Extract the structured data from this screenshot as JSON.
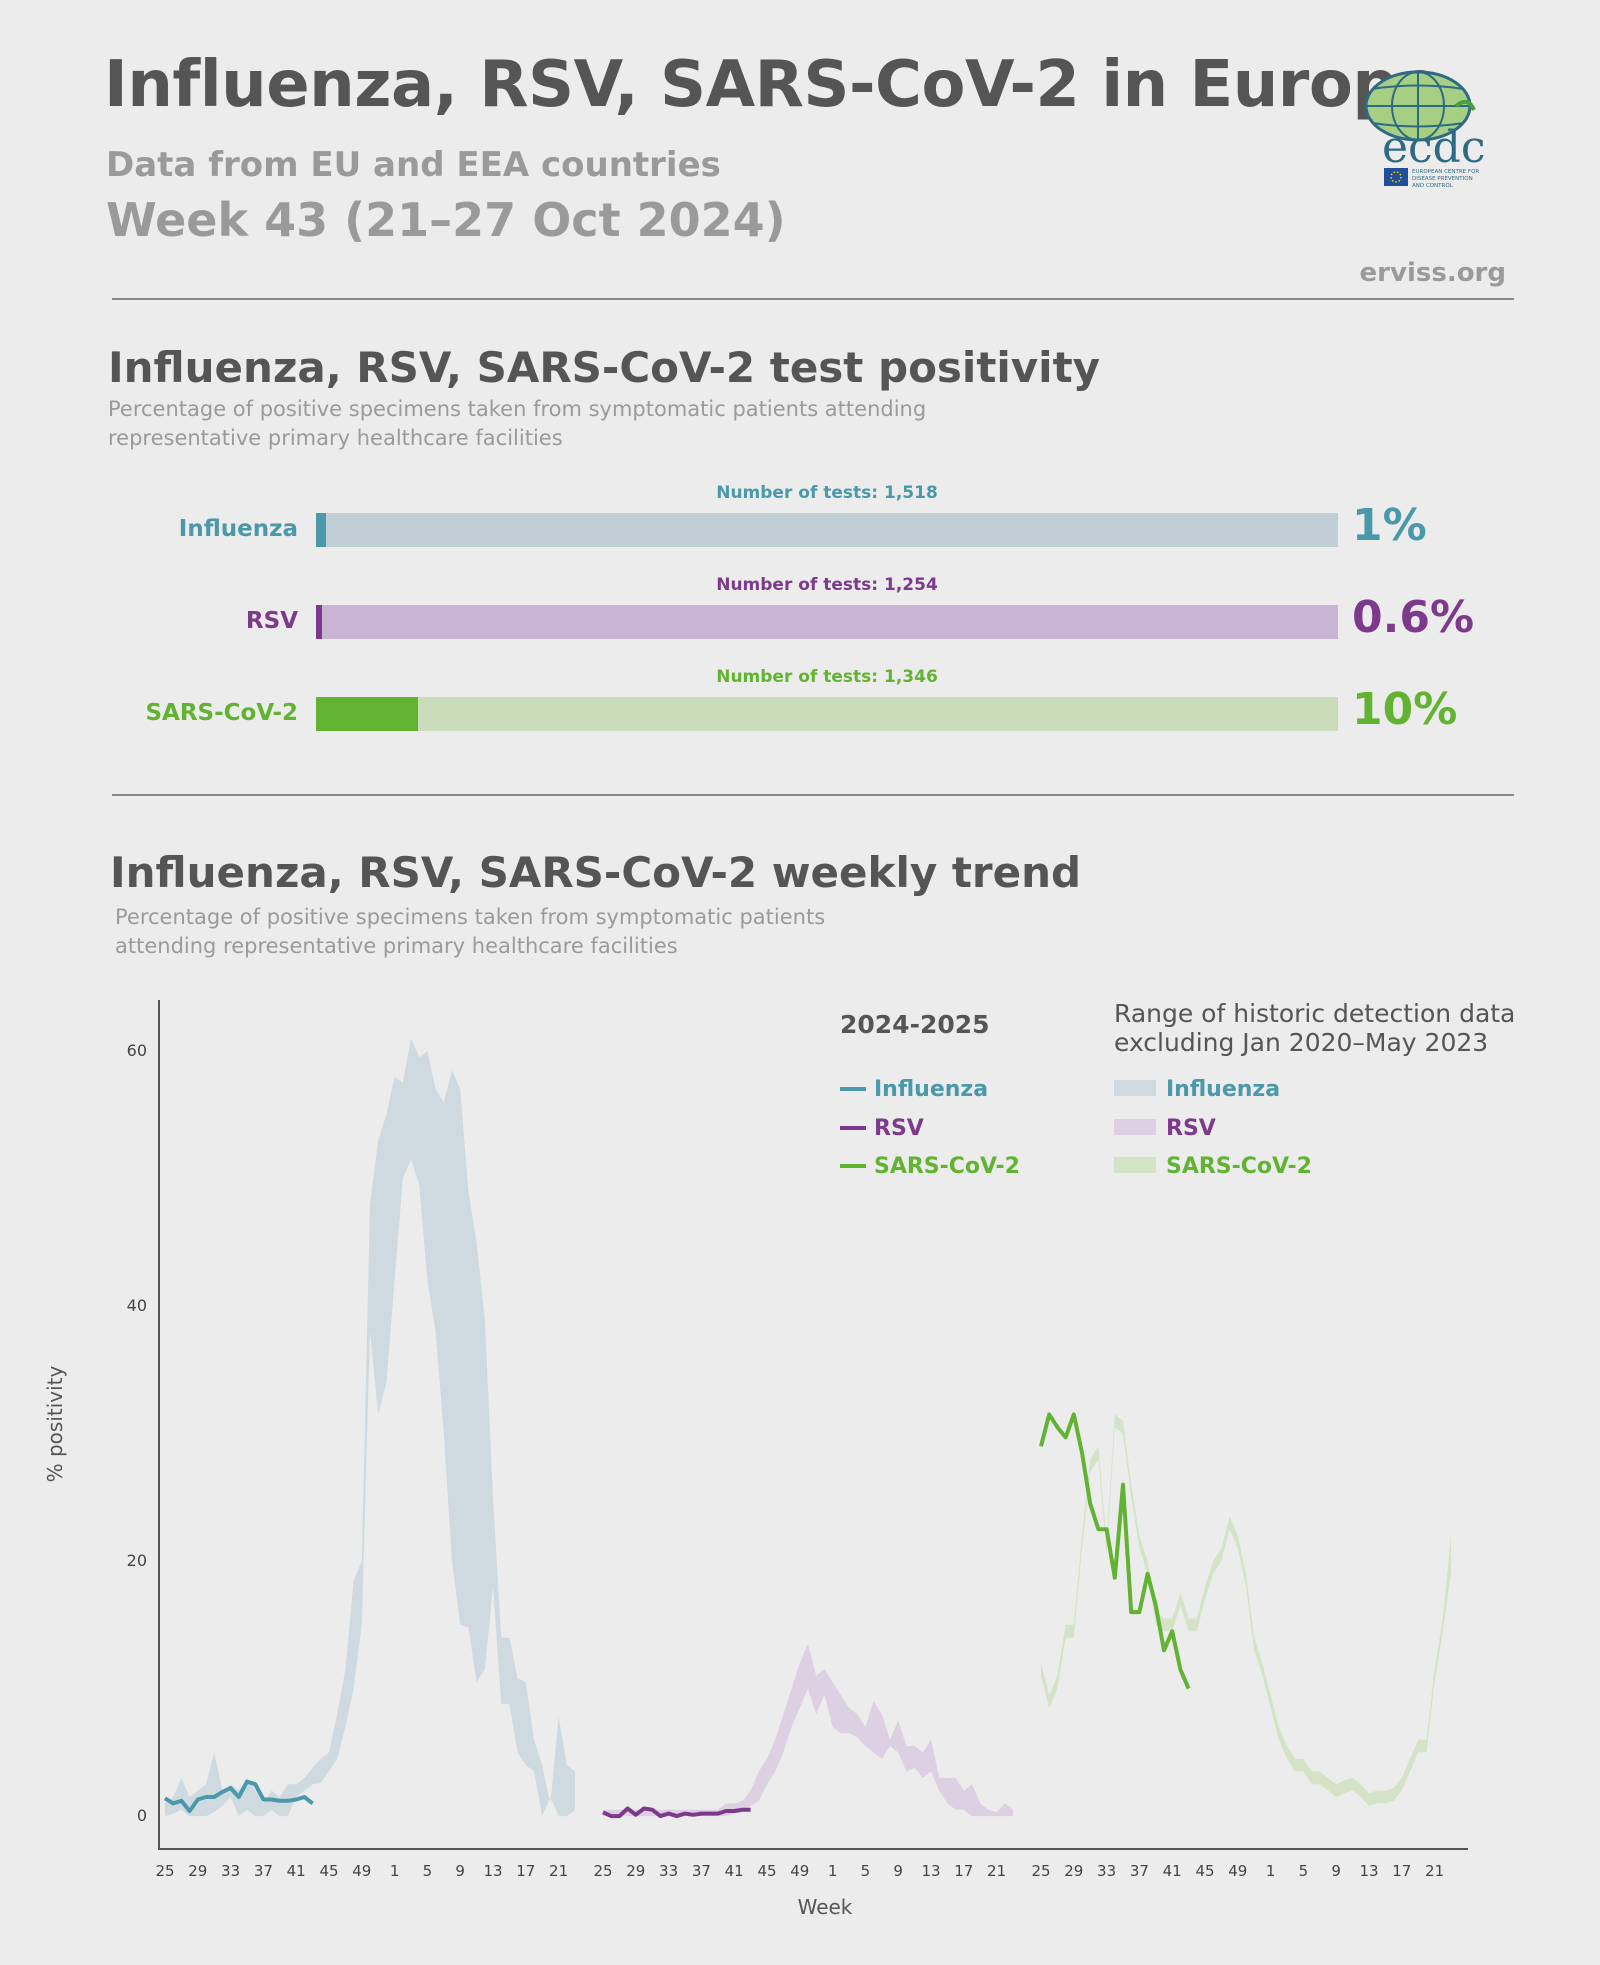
{
  "header": {
    "title": "Influenza, RSV, SARS-CoV-2 in Europe",
    "subtitle_line1": "Data from EU and EEA countries",
    "subtitle_line2": "Week 43 (21–27 Oct 2024)",
    "site": "erviss.org",
    "logo_text": "ecdc",
    "logo_caption": [
      "EUROPEAN CENTRE FOR",
      "DISEASE PREVENTION",
      "AND CONTROL"
    ]
  },
  "positivity": {
    "title": "Influenza, RSV, SARS-CoV-2 test positivity",
    "subtitle_lines": [
      "Percentage of positive specimens taken from symptomatic patients attending",
      "representative primary healthcare facilities"
    ],
    "rows": [
      {
        "label": "Influenza",
        "tests": "Number of tests: 1,518",
        "percent_text": "1%",
        "value": 1,
        "color": "#4a98aa",
        "track_color": "#c0cfd5"
      },
      {
        "label": "RSV",
        "tests": "Number of tests: 1,254",
        "percent_text": "0.6%",
        "value": 0.6,
        "color": "#7d3a8c",
        "track_color": "#c9b5d3"
      },
      {
        "label": "SARS-CoV-2",
        "tests": "Number of tests: 1,346",
        "percent_text": "10%",
        "value": 10,
        "color": "#62b332",
        "track_color": "#c9dbb8"
      }
    ]
  },
  "trend": {
    "title": "Influenza, RSV, SARS-CoV-2 weekly trend",
    "subtitle_lines": [
      "Percentage of positive specimens taken from symptomatic patients",
      "attending representative primary healthcare facilities"
    ],
    "legend_current_title": "2024-2025",
    "legend_range_title_lines": [
      "Range of historic detection data",
      "excluding Jan 2020–May 2023"
    ]
  },
  "chart_data": {
    "type": "line",
    "ylabel": "% positivity",
    "xlabel": "Week",
    "ylim": [
      -2.5,
      64
    ],
    "yticks": [
      0,
      20,
      40,
      60
    ],
    "x_tick_labels": [
      "25",
      "29",
      "33",
      "37",
      "41",
      "45",
      "49",
      "1",
      "5",
      "9",
      "13",
      "17",
      "21"
    ],
    "x_weeks": [
      25,
      26,
      27,
      28,
      29,
      30,
      31,
      32,
      33,
      34,
      35,
      36,
      37,
      38,
      39,
      40,
      41,
      42,
      43,
      44,
      45,
      46,
      47,
      48,
      49,
      50,
      51,
      52,
      1,
      2,
      3,
      4,
      5,
      6,
      7,
      8,
      9,
      10,
      11,
      12,
      13,
      14,
      15,
      16,
      17,
      18,
      19,
      20,
      21,
      22,
      23
    ],
    "grid": false,
    "panels": [
      {
        "name": "Influenza",
        "color": "#4a98aa",
        "band_color": "#cfdae0",
        "current": [
          1.4,
          1.0,
          1.2,
          0.4,
          1.3,
          1.5,
          1.5,
          1.9,
          2.2,
          1.5,
          2.7,
          2.5,
          1.3,
          1.3,
          1.2,
          1.2,
          1.3,
          1.5,
          1.0
        ],
        "range_low": [
          0,
          0.2,
          0.5,
          0,
          0,
          0,
          0.3,
          0.8,
          1.5,
          0,
          0.5,
          0,
          0,
          0.5,
          0,
          0,
          1.5,
          2.0,
          2.5,
          2.6,
          3.5,
          4.5,
          7.0,
          10.0,
          15.0,
          38.0,
          31.5,
          34.0,
          42.0,
          50.0,
          51.5,
          49.5,
          42.0,
          38.0,
          30.0,
          20.0,
          15.0,
          14.8,
          10.5,
          11.5,
          18.0,
          8.8,
          8.8,
          5.0,
          4.0,
          3.5,
          0,
          1.5,
          0,
          0,
          0.5
        ],
        "range_high": [
          1.0,
          1.5,
          3.0,
          1.5,
          2.0,
          2.5,
          5.0,
          2.0,
          2.5,
          2.0,
          3.0,
          2.0,
          1.0,
          2.0,
          1.5,
          2.5,
          2.5,
          3.0,
          3.8,
          4.5,
          5.0,
          8.0,
          11.5,
          18.5,
          20.0,
          48.0,
          53.0,
          55.0,
          58.0,
          57.5,
          61.0,
          59.5,
          60.0,
          57.0,
          56.0,
          58.5,
          57.0,
          49.0,
          45.0,
          39.0,
          25.0,
          14.0,
          14.0,
          10.8,
          10.5,
          6.0,
          4.0,
          1.0,
          7.8,
          4.0,
          3.5
        ]
      },
      {
        "name": "RSV",
        "color": "#7d3a8c",
        "band_color": "#dcd0e2",
        "current": [
          0.3,
          0.0,
          0.0,
          0.6,
          0.1,
          0.6,
          0.5,
          0.0,
          0.2,
          0.0,
          0.2,
          0.1,
          0.2,
          0.2,
          0.2,
          0.4,
          0.4,
          0.5,
          0.5
        ],
        "range_low": [
          0,
          0,
          0,
          0,
          0,
          0,
          0,
          0,
          0,
          0,
          0,
          0,
          0,
          0,
          0,
          0,
          0.2,
          0.3,
          0.8,
          1.2,
          2.5,
          3.5,
          5.0,
          7.0,
          8.5,
          10.0,
          8.0,
          9.5,
          7.0,
          6.5,
          6.5,
          6.2,
          5.5,
          5.0,
          4.5,
          5.5,
          5.0,
          3.5,
          3.8,
          3.0,
          3.5,
          2.0,
          1.0,
          0.5,
          0.5,
          0,
          0,
          0,
          0,
          0,
          0
        ],
        "range_high": [
          0.5,
          0.5,
          0.5,
          0.5,
          0.5,
          0.5,
          0.5,
          0.5,
          0.5,
          0.5,
          0.5,
          0.5,
          0.5,
          0.5,
          0.5,
          1.0,
          1.0,
          1.2,
          2.0,
          3.5,
          4.5,
          6.0,
          8.0,
          10.0,
          12.0,
          13.5,
          11.0,
          11.5,
          10.5,
          9.5,
          8.5,
          8.0,
          7.0,
          9.0,
          8.0,
          6.0,
          7.5,
          5.5,
          5.5,
          5.0,
          6.0,
          3.0,
          3.0,
          3.0,
          2.0,
          2.5,
          1.0,
          0.5,
          0.3,
          1.0,
          0.5
        ]
      },
      {
        "name": "SARS-CoV-2",
        "color": "#62b332",
        "band_color": "#d4e3c6",
        "current": [
          29.0,
          31.5,
          30.5,
          29.7,
          31.5,
          28.5,
          24.5,
          22.5,
          22.5,
          18.7,
          26.0,
          16.0,
          16.0,
          19.0,
          16.5,
          13.0,
          14.5,
          11.5,
          10.0
        ],
        "range_low": [
          11.0,
          8.5,
          10.0,
          14.0,
          14.0,
          21.0,
          27.0,
          28.0,
          20.5,
          30.5,
          30.0,
          25.0,
          21.0,
          19.0,
          15.0,
          14.5,
          14.5,
          16.5,
          14.5,
          14.5,
          17.0,
          19.0,
          20.0,
          22.5,
          21.0,
          18.0,
          13.0,
          11.0,
          8.5,
          6.0,
          4.5,
          3.5,
          3.5,
          2.5,
          2.5,
          2.0,
          1.5,
          1.8,
          2.0,
          1.5,
          0.8,
          1.0,
          1.0,
          1.2,
          2.0,
          3.5,
          5.0,
          5.0,
          10.5,
          14.5,
          19.0
        ],
        "range_high": [
          12.0,
          9.5,
          11.0,
          15.0,
          15.0,
          22.0,
          28.0,
          29.0,
          21.5,
          31.5,
          31.0,
          26.0,
          22.0,
          20.0,
          16.0,
          15.5,
          15.5,
          17.5,
          15.5,
          15.5,
          18.0,
          20.0,
          21.0,
          23.5,
          22.0,
          19.0,
          14.0,
          12.0,
          9.5,
          7.0,
          5.5,
          4.5,
          4.5,
          3.5,
          3.5,
          3.0,
          2.5,
          2.8,
          3.0,
          2.5,
          1.8,
          2.0,
          2.0,
          2.2,
          3.0,
          4.5,
          6.0,
          6.0,
          11.5,
          15.5,
          22.0
        ]
      }
    ]
  }
}
